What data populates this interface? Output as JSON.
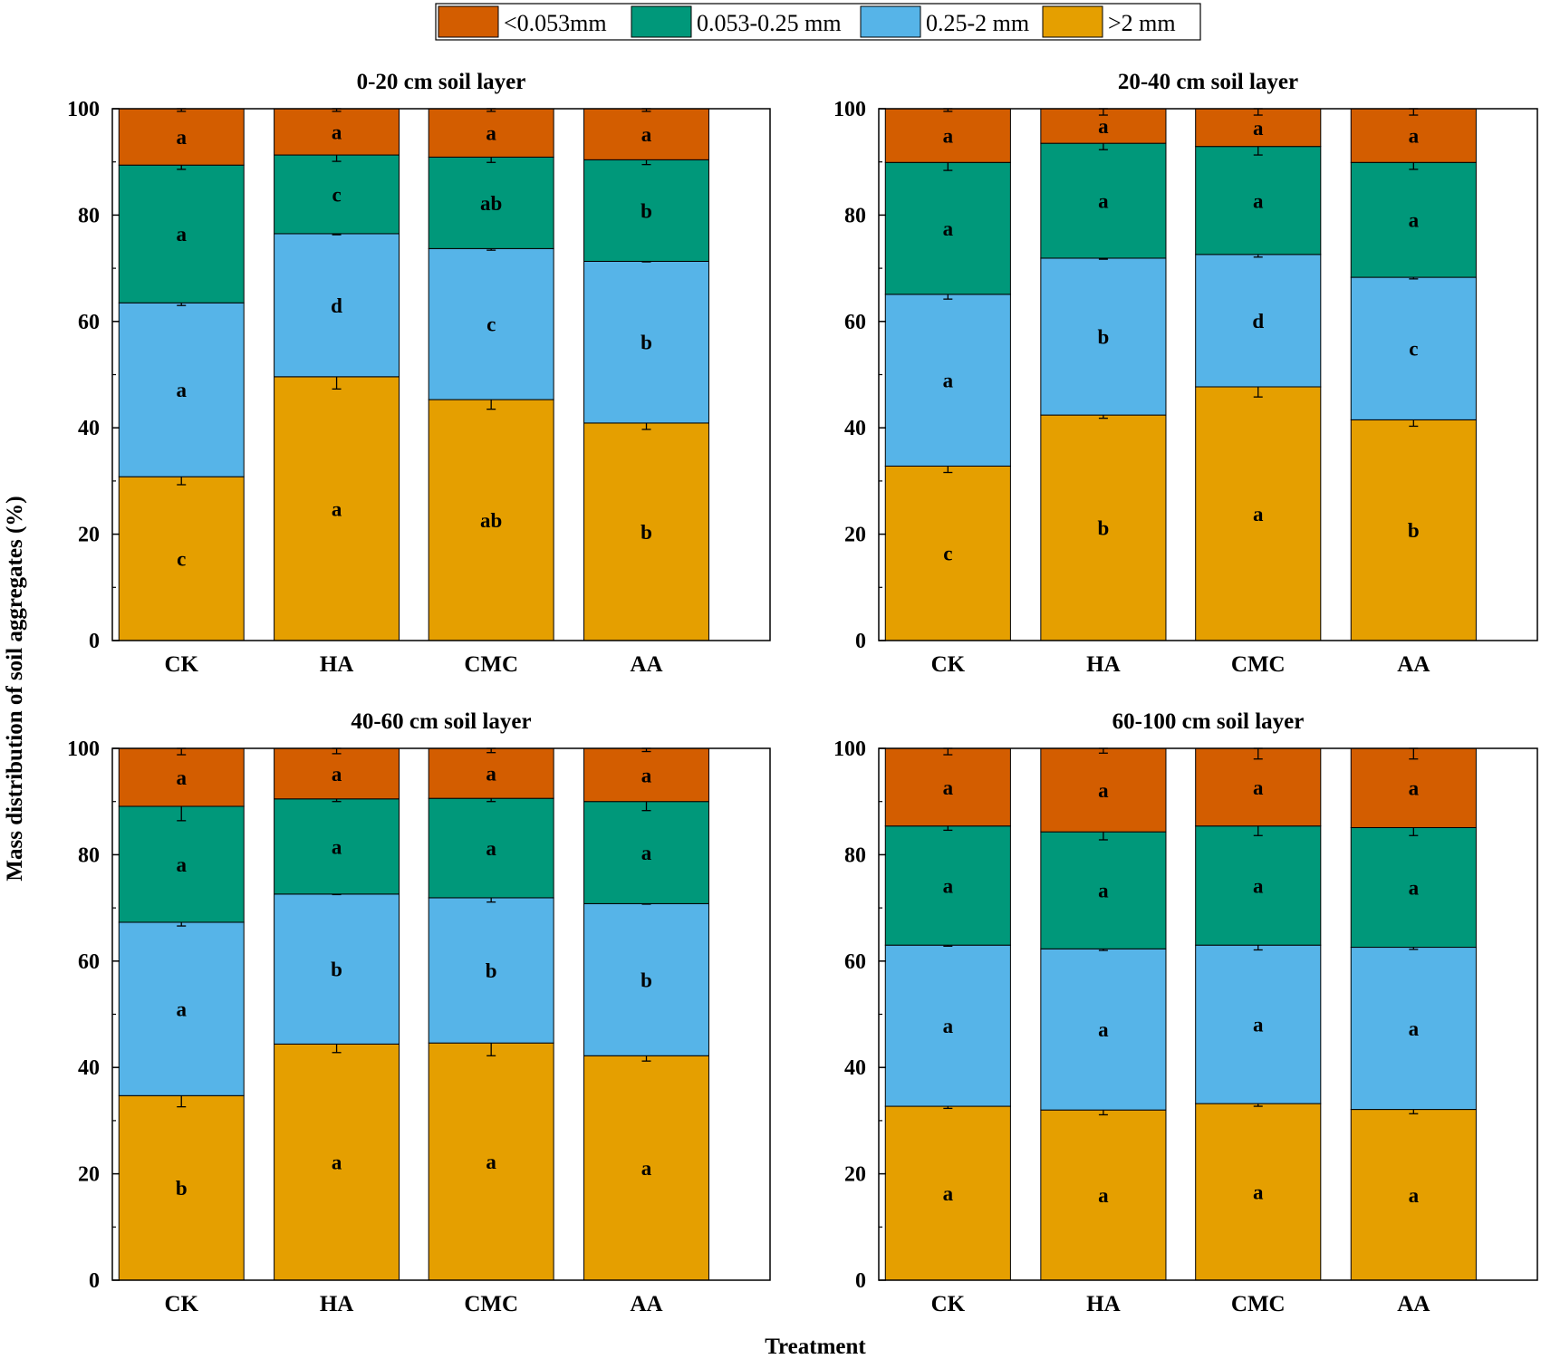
{
  "colors": {
    "lt0053": "#d35d00",
    "s0053_025": "#00987a",
    "s025_2": "#56b4e8",
    "gt2": "#e59f00"
  },
  "legend": [
    {
      "key": "lt0053",
      "label": "<0.053mm"
    },
    {
      "key": "s0053_025",
      "label": "0.053-0.25 mm"
    },
    {
      "key": "s025_2",
      "label": "0.25-2 mm"
    },
    {
      "key": "gt2",
      "label": ">2 mm"
    }
  ],
  "axes": {
    "ylabel": "Mass distribution of soil aggregates (%)",
    "xlabel": "Treatment"
  },
  "chart_data": [
    {
      "type": "bar",
      "stacked": true,
      "title": "0-20 cm soil layer",
      "categories": [
        "CK",
        "HA",
        "CMC",
        "AA"
      ],
      "ylim": [
        0,
        100
      ],
      "yticks": [
        0,
        20,
        40,
        60,
        80,
        100
      ],
      "series": [
        {
          "name": ">2 mm",
          "key": "gt2",
          "values": [
            30.8,
            49.6,
            45.3,
            40.9
          ],
          "errors": [
            1.5,
            2.3,
            1.8,
            1.2
          ],
          "letters": [
            "c",
            "a",
            "ab",
            "b"
          ]
        },
        {
          "name": "0.25-2 mm",
          "key": "s025_2",
          "values": [
            32.7,
            26.9,
            28.4,
            30.4
          ],
          "errors": [
            0.5,
            0.2,
            0.3,
            0.1
          ],
          "letters": [
            "a",
            "d",
            "c",
            "b"
          ]
        },
        {
          "name": "0.053-0.25 mm",
          "key": "s0053_025",
          "values": [
            25.9,
            14.8,
            17.2,
            19.1
          ],
          "errors": [
            0.8,
            1.2,
            1.0,
            0.9
          ],
          "letters": [
            "a",
            "c",
            "ab",
            "b"
          ]
        },
        {
          "name": "<0.053mm",
          "key": "lt0053",
          "values": [
            10.6,
            8.7,
            9.1,
            9.6
          ],
          "errors": [
            0.5,
            0.5,
            0.5,
            0.5
          ],
          "letters": [
            "a",
            "a",
            "a",
            "a"
          ]
        }
      ]
    },
    {
      "type": "bar",
      "stacked": true,
      "title": "20-40 cm soil layer",
      "categories": [
        "CK",
        "HA",
        "CMC",
        "AA"
      ],
      "ylim": [
        0,
        100
      ],
      "yticks": [
        0,
        20,
        40,
        60,
        80,
        100
      ],
      "series": [
        {
          "name": ">2 mm",
          "key": "gt2",
          "values": [
            32.8,
            42.4,
            47.7,
            41.5
          ],
          "errors": [
            1.2,
            0.6,
            1.9,
            1.2
          ],
          "letters": [
            "c",
            "b",
            "a",
            "b"
          ]
        },
        {
          "name": "0.25-2 mm",
          "key": "s025_2",
          "values": [
            32.3,
            29.5,
            24.9,
            26.8
          ],
          "errors": [
            0.9,
            0.2,
            0.5,
            0.3
          ],
          "letters": [
            "a",
            "b",
            "d",
            "c"
          ]
        },
        {
          "name": "0.053-0.25 mm",
          "key": "s0053_025",
          "values": [
            24.8,
            21.6,
            20.3,
            21.6
          ],
          "errors": [
            1.5,
            1.2,
            1.6,
            1.3
          ],
          "letters": [
            "a",
            "a",
            "a",
            "a"
          ]
        },
        {
          "name": "<0.053mm",
          "key": "lt0053",
          "values": [
            10.1,
            6.5,
            7.1,
            10.1
          ],
          "errors": [
            0.5,
            1.2,
            1.2,
            1.2
          ],
          "letters": [
            "a",
            "a",
            "a",
            "a"
          ]
        }
      ]
    },
    {
      "type": "bar",
      "stacked": true,
      "title": "40-60 cm soil layer",
      "categories": [
        "CK",
        "HA",
        "CMC",
        "AA"
      ],
      "ylim": [
        0,
        100
      ],
      "yticks": [
        0,
        20,
        40,
        60,
        80,
        100
      ],
      "series": [
        {
          "name": ">2 mm",
          "key": "gt2",
          "values": [
            34.7,
            44.4,
            44.6,
            42.2
          ],
          "errors": [
            2.1,
            1.6,
            2.4,
            1.0
          ],
          "letters": [
            "b",
            "a",
            "a",
            "a"
          ]
        },
        {
          "name": "0.25-2 mm",
          "key": "s025_2",
          "values": [
            32.6,
            28.2,
            27.3,
            28.6
          ],
          "errors": [
            0.7,
            0.1,
            0.8,
            0.1
          ],
          "letters": [
            "a",
            "b",
            "b",
            "b"
          ]
        },
        {
          "name": "0.053-0.25 mm",
          "key": "s0053_025",
          "values": [
            21.8,
            17.9,
            18.7,
            19.2
          ],
          "errors": [
            2.7,
            0.5,
            0.6,
            1.7
          ],
          "letters": [
            "a",
            "a",
            "a",
            "a"
          ]
        },
        {
          "name": "<0.053mm",
          "key": "lt0053",
          "values": [
            10.9,
            9.5,
            9.4,
            10.0
          ],
          "errors": [
            1.2,
            1.0,
            0.8,
            0.6
          ],
          "letters": [
            "a",
            "a",
            "a",
            "a"
          ]
        }
      ]
    },
    {
      "type": "bar",
      "stacked": true,
      "title": "60-100 cm soil layer",
      "categories": [
        "CK",
        "HA",
        "CMC",
        "AA"
      ],
      "ylim": [
        0,
        100
      ],
      "yticks": [
        0,
        20,
        40,
        60,
        80,
        100
      ],
      "series": [
        {
          "name": ">2 mm",
          "key": "gt2",
          "values": [
            32.7,
            32.0,
            33.2,
            32.1
          ],
          "errors": [
            0.4,
            0.9,
            0.5,
            0.8
          ],
          "letters": [
            "a",
            "a",
            "a",
            "a"
          ]
        },
        {
          "name": "0.25-2 mm",
          "key": "s025_2",
          "values": [
            30.3,
            30.3,
            29.8,
            30.5
          ],
          "errors": [
            0.2,
            0.3,
            0.9,
            0.4
          ],
          "letters": [
            "a",
            "a",
            "a",
            "a"
          ]
        },
        {
          "name": "0.053-0.25 mm",
          "key": "s0053_025",
          "values": [
            22.4,
            22.0,
            22.4,
            22.5
          ],
          "errors": [
            0.8,
            1.5,
            1.8,
            1.5
          ],
          "letters": [
            "a",
            "a",
            "a",
            "a"
          ]
        },
        {
          "name": "<0.053mm",
          "key": "lt0053",
          "values": [
            14.6,
            15.7,
            14.6,
            14.9
          ],
          "errors": [
            1.2,
            0.9,
            2.0,
            2.0
          ],
          "letters": [
            "a",
            "a",
            "a",
            "a"
          ]
        }
      ]
    }
  ]
}
